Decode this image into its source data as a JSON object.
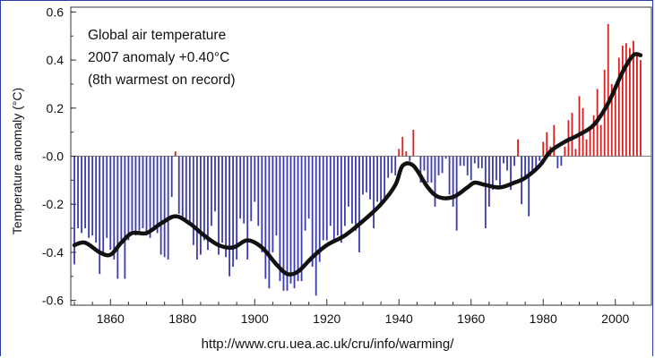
{
  "annotation": {
    "line1": "Global air temperature",
    "line2": "2007 anomaly +0.40°C",
    "line3": "(8th warmest on record)"
  },
  "source_url": "http://www.cru.uea.ac.uk/cru/info/warming/",
  "colors": {
    "positive": "#d42020",
    "negative": "#3c3cb0",
    "smooth": "#111111",
    "frame": "#2b3ea8"
  },
  "chart_data": {
    "type": "bar",
    "title": "",
    "xlabel": "",
    "ylabel": "Temperature anomaly (°C)",
    "xlim": [
      1849,
      2010
    ],
    "ylim": [
      -0.62,
      0.62
    ],
    "x_ticks": [
      1860,
      1880,
      1900,
      1920,
      1940,
      1960,
      1980,
      2000
    ],
    "y_ticks": [
      0.6,
      0.4,
      0.2,
      -0.0,
      -0.2,
      -0.4,
      -0.6
    ],
    "y_tick_labels": [
      "0.6",
      "0.4",
      "0.2",
      "-0.0",
      "-0.2",
      "-0.4",
      "-0.6"
    ],
    "grid": false,
    "series": [
      {
        "kind": "bar",
        "x": [
          1850,
          1851,
          1852,
          1853,
          1854,
          1855,
          1856,
          1857,
          1858,
          1859,
          1860,
          1861,
          1862,
          1863,
          1864,
          1865,
          1866,
          1867,
          1868,
          1869,
          1870,
          1871,
          1872,
          1873,
          1874,
          1875,
          1876,
          1877,
          1878,
          1879,
          1880,
          1881,
          1882,
          1883,
          1884,
          1885,
          1886,
          1887,
          1888,
          1889,
          1890,
          1891,
          1892,
          1893,
          1894,
          1895,
          1896,
          1897,
          1898,
          1899,
          1900,
          1901,
          1902,
          1903,
          1904,
          1905,
          1906,
          1907,
          1908,
          1909,
          1910,
          1911,
          1912,
          1913,
          1914,
          1915,
          1916,
          1917,
          1918,
          1919,
          1920,
          1921,
          1922,
          1923,
          1924,
          1925,
          1926,
          1927,
          1928,
          1929,
          1930,
          1931,
          1932,
          1933,
          1934,
          1935,
          1936,
          1937,
          1938,
          1939,
          1940,
          1941,
          1942,
          1943,
          1944,
          1945,
          1946,
          1947,
          1948,
          1949,
          1950,
          1951,
          1952,
          1953,
          1954,
          1955,
          1956,
          1957,
          1958,
          1959,
          1960,
          1961,
          1962,
          1963,
          1964,
          1965,
          1966,
          1967,
          1968,
          1969,
          1970,
          1971,
          1972,
          1973,
          1974,
          1975,
          1976,
          1977,
          1978,
          1979,
          1980,
          1981,
          1982,
          1983,
          1984,
          1985,
          1986,
          1987,
          1988,
          1989,
          1990,
          1991,
          1992,
          1993,
          1994,
          1995,
          1996,
          1997,
          1998,
          1999,
          2000,
          2001,
          2002,
          2003,
          2004,
          2005,
          2006,
          2007
        ],
        "values": [
          -0.45,
          -0.3,
          -0.32,
          -0.3,
          -0.34,
          -0.33,
          -0.36,
          -0.49,
          -0.4,
          -0.34,
          -0.39,
          -0.43,
          -0.51,
          -0.36,
          -0.51,
          -0.35,
          -0.31,
          -0.33,
          -0.31,
          -0.3,
          -0.33,
          -0.34,
          -0.3,
          -0.32,
          -0.41,
          -0.42,
          -0.43,
          -0.17,
          0.02,
          -0.24,
          -0.26,
          -0.26,
          -0.28,
          -0.37,
          -0.43,
          -0.41,
          -0.35,
          -0.39,
          -0.29,
          -0.23,
          -0.41,
          -0.36,
          -0.42,
          -0.5,
          -0.46,
          -0.43,
          -0.26,
          -0.28,
          -0.43,
          -0.27,
          -0.19,
          -0.29,
          -0.4,
          -0.51,
          -0.55,
          -0.4,
          -0.33,
          -0.52,
          -0.56,
          -0.56,
          -0.53,
          -0.55,
          -0.52,
          -0.52,
          -0.31,
          -0.26,
          -0.46,
          -0.58,
          -0.44,
          -0.35,
          -0.35,
          -0.29,
          -0.36,
          -0.33,
          -0.36,
          -0.29,
          -0.21,
          -0.28,
          -0.31,
          -0.4,
          -0.16,
          -0.15,
          -0.18,
          -0.3,
          -0.19,
          -0.21,
          -0.19,
          -0.09,
          -0.07,
          -0.08,
          0.03,
          0.08,
          0.02,
          -0.02,
          0.11,
          0.0,
          -0.11,
          -0.06,
          -0.11,
          -0.11,
          -0.21,
          -0.08,
          -0.07,
          -0.01,
          -0.16,
          -0.21,
          -0.31,
          -0.04,
          -0.04,
          -0.08,
          -0.1,
          -0.03,
          -0.05,
          -0.05,
          -0.3,
          -0.21,
          -0.14,
          -0.1,
          -0.13,
          -0.03,
          -0.06,
          -0.14,
          -0.04,
          0.07,
          -0.2,
          -0.09,
          -0.25,
          -0.06,
          -0.05,
          -0.02,
          0.06,
          0.1,
          0.04,
          0.13,
          -0.05,
          -0.04,
          0.04,
          0.15,
          0.18,
          0.03,
          0.25,
          0.2,
          0.07,
          0.12,
          0.17,
          0.28,
          0.13,
          0.36,
          0.55,
          0.3,
          0.27,
          0.41,
          0.46,
          0.47,
          0.45,
          0.48,
          0.42,
          0.4
        ]
      },
      {
        "kind": "smoothed_line",
        "x": [
          1850,
          1853,
          1857,
          1860,
          1863,
          1866,
          1870,
          1874,
          1878,
          1882,
          1886,
          1890,
          1894,
          1898,
          1902,
          1906,
          1909,
          1912,
          1916,
          1920,
          1925,
          1930,
          1935,
          1939,
          1941,
          1944,
          1948,
          1951,
          1955,
          1959,
          1961,
          1964,
          1968,
          1972,
          1975,
          1979,
          1982,
          1986,
          1990,
          1994,
          1998,
          2002,
          2005,
          2007
        ],
        "values": [
          -0.37,
          -0.36,
          -0.4,
          -0.41,
          -0.36,
          -0.32,
          -0.32,
          -0.28,
          -0.25,
          -0.28,
          -0.33,
          -0.37,
          -0.38,
          -0.35,
          -0.38,
          -0.45,
          -0.49,
          -0.48,
          -0.42,
          -0.37,
          -0.33,
          -0.27,
          -0.2,
          -0.12,
          -0.04,
          -0.04,
          -0.13,
          -0.17,
          -0.17,
          -0.13,
          -0.11,
          -0.12,
          -0.13,
          -0.11,
          -0.09,
          -0.04,
          0.02,
          0.06,
          0.09,
          0.13,
          0.22,
          0.35,
          0.42,
          0.42
        ]
      }
    ]
  }
}
